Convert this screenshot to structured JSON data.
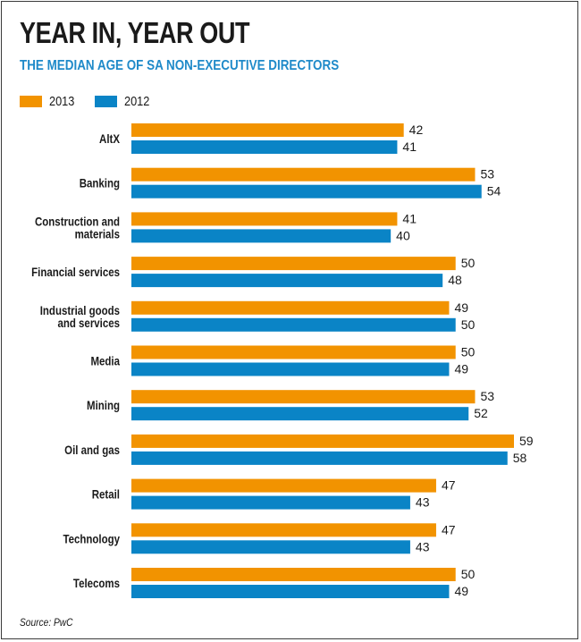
{
  "header": {
    "title": "YEAR IN, YEAR OUT",
    "subtitle": "THE MEDIAN AGE OF SA NON-EXECUTIVE DIRECTORS"
  },
  "colors": {
    "series_2013": "#f29300",
    "series_2012": "#0a84c6",
    "subtitle": "#1f8ac9",
    "border": "#3a3a3a"
  },
  "chart_data": {
    "type": "bar",
    "orientation": "horizontal",
    "categories": [
      "AltX",
      "Banking",
      "Construction and materials",
      "Financial services",
      "Industrial goods and services",
      "Media",
      "Mining",
      "Oil and gas",
      "Retail",
      "Technology",
      "Telecoms"
    ],
    "series": [
      {
        "name": "2013",
        "color": "#f29300",
        "values": [
          42,
          53,
          41,
          50,
          49,
          50,
          53,
          59,
          47,
          47,
          50
        ]
      },
      {
        "name": "2012",
        "color": "#0a84c6",
        "values": [
          41,
          54,
          40,
          48,
          50,
          49,
          52,
          58,
          43,
          43,
          49
        ]
      }
    ],
    "xlim": [
      0,
      59
    ],
    "grid": false,
    "legend_position": "top-left",
    "data_labels": true
  },
  "footer": {
    "source": "Source: PwC"
  }
}
